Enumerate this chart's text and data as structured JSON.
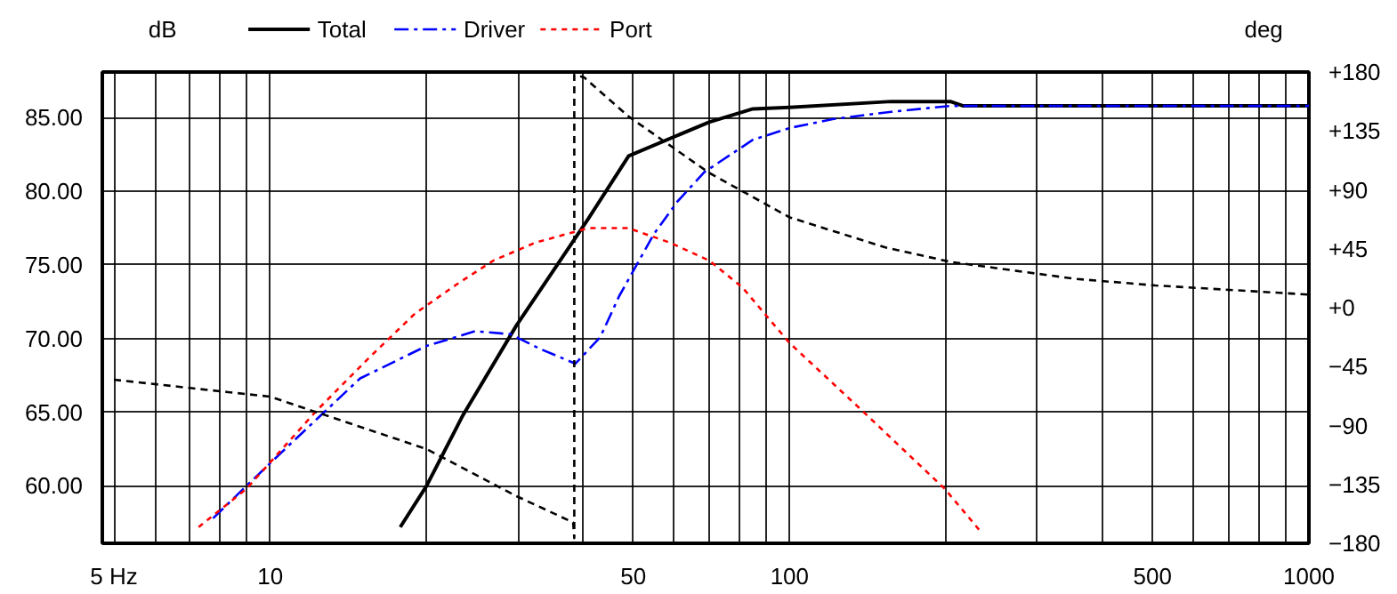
{
  "chart_data": {
    "type": "line",
    "ylabel": "dB",
    "y2label": "deg",
    "log": "x",
    "grid": true,
    "legend": "top left",
    "xlim": [
      4.75,
      1000
    ],
    "ylim": [
      56.1,
      88.1
    ],
    "y2lim": [
      -180,
      180
    ],
    "xticks": [
      {
        "value": 5,
        "label": "5 Hz"
      },
      {
        "value": 6,
        "label": null
      },
      {
        "value": 7,
        "label": null
      },
      {
        "value": 8,
        "label": null
      },
      {
        "value": 9,
        "label": null
      },
      10,
      {
        "value": 20,
        "label": null
      },
      {
        "value": 30,
        "label": null
      },
      {
        "value": 40,
        "label": null
      },
      50,
      {
        "value": 60,
        "label": null
      },
      {
        "value": 70,
        "label": null
      },
      {
        "value": 80,
        "label": null
      },
      {
        "value": 90,
        "label": null
      },
      100,
      {
        "value": 200,
        "label": null
      },
      {
        "value": 300,
        "label": null
      },
      {
        "value": 400,
        "label": null
      },
      500,
      {
        "value": 600,
        "label": null
      },
      {
        "value": 700,
        "label": null
      },
      {
        "value": 800,
        "label": null
      },
      {
        "value": 900,
        "label": null
      },
      1000
    ],
    "yticks": [
      {
        "value": 60,
        "label": "60.00"
      },
      {
        "value": 65,
        "label": "65.00"
      },
      {
        "value": 70,
        "label": "70.00"
      },
      {
        "value": 75,
        "label": "75.00"
      },
      {
        "value": 80,
        "label": "80.00"
      },
      {
        "value": 85,
        "label": "85.00"
      }
    ],
    "y2ticks": [
      -180,
      -135,
      -90,
      -45,
      {
        "value": 0,
        "label": "+0"
      },
      {
        "value": 45,
        "label": "+45"
      },
      {
        "value": 90,
        "label": "+90"
      },
      {
        "value": 135,
        "label": "+135"
      },
      {
        "value": 180,
        "label": "+180"
      }
    ],
    "series": [
      {
        "name": "Total",
        "color": "#000000",
        "line_style": "solid",
        "x": [
          17.8,
          20,
          23.5,
          29.8,
          40.9,
          49,
          70,
          85,
          100,
          157,
          204,
          216,
          1000
        ],
        "values": [
          57.2,
          60.0,
          64.8,
          70.9,
          78.1,
          82.4,
          84.7,
          85.6,
          85.7,
          86.1,
          86.1,
          85.8,
          85.8
        ]
      },
      {
        "name": "Driver",
        "color": "#0000ff",
        "line_style": "dashed",
        "x": [
          7.76,
          9.0,
          10.9,
          14.9,
          20,
          24.8,
          29,
          33.1,
          38.7,
          43.2,
          47,
          54.8,
          60.8,
          68.5,
          85,
          100,
          121,
          157,
          204,
          296,
          1000
        ],
        "values": [
          57.8,
          60.0,
          62.8,
          67.3,
          69.5,
          70.5,
          70.3,
          69.3,
          68.3,
          70.1,
          72.9,
          77.1,
          79.3,
          81.3,
          83.5,
          84.3,
          84.9,
          85.4,
          85.8,
          85.8,
          85.8
        ]
      },
      {
        "name": "Port",
        "color": "#ff0000",
        "line_style": "dotted",
        "x": [
          7.28,
          9.0,
          12.2,
          15.5,
          19.0,
          22.9,
          26.9,
          32.3,
          40.9,
          49,
          59,
          70,
          81,
          100,
          139,
          199,
          232
        ],
        "values": [
          57.2,
          59.8,
          65.0,
          68.7,
          71.7,
          73.7,
          75.3,
          76.5,
          77.5,
          77.5,
          76.5,
          75.3,
          73.5,
          69.7,
          65.0,
          59.8,
          57.0
        ]
      },
      {
        "color": "#000000",
        "line_style": "dashed",
        "axis": "y2",
        "x": [
          5,
          10,
          20,
          29.8,
          38.3,
          38.5,
          38.5,
          40.2,
          49,
          70,
          100,
          153,
          204,
          355,
          506,
          1000
        ],
        "values": [
          -55,
          -68,
          -108,
          -144,
          -164,
          -176,
          178,
          176,
          146,
          103,
          69,
          46,
          35,
          22,
          17,
          10
        ]
      }
    ]
  }
}
